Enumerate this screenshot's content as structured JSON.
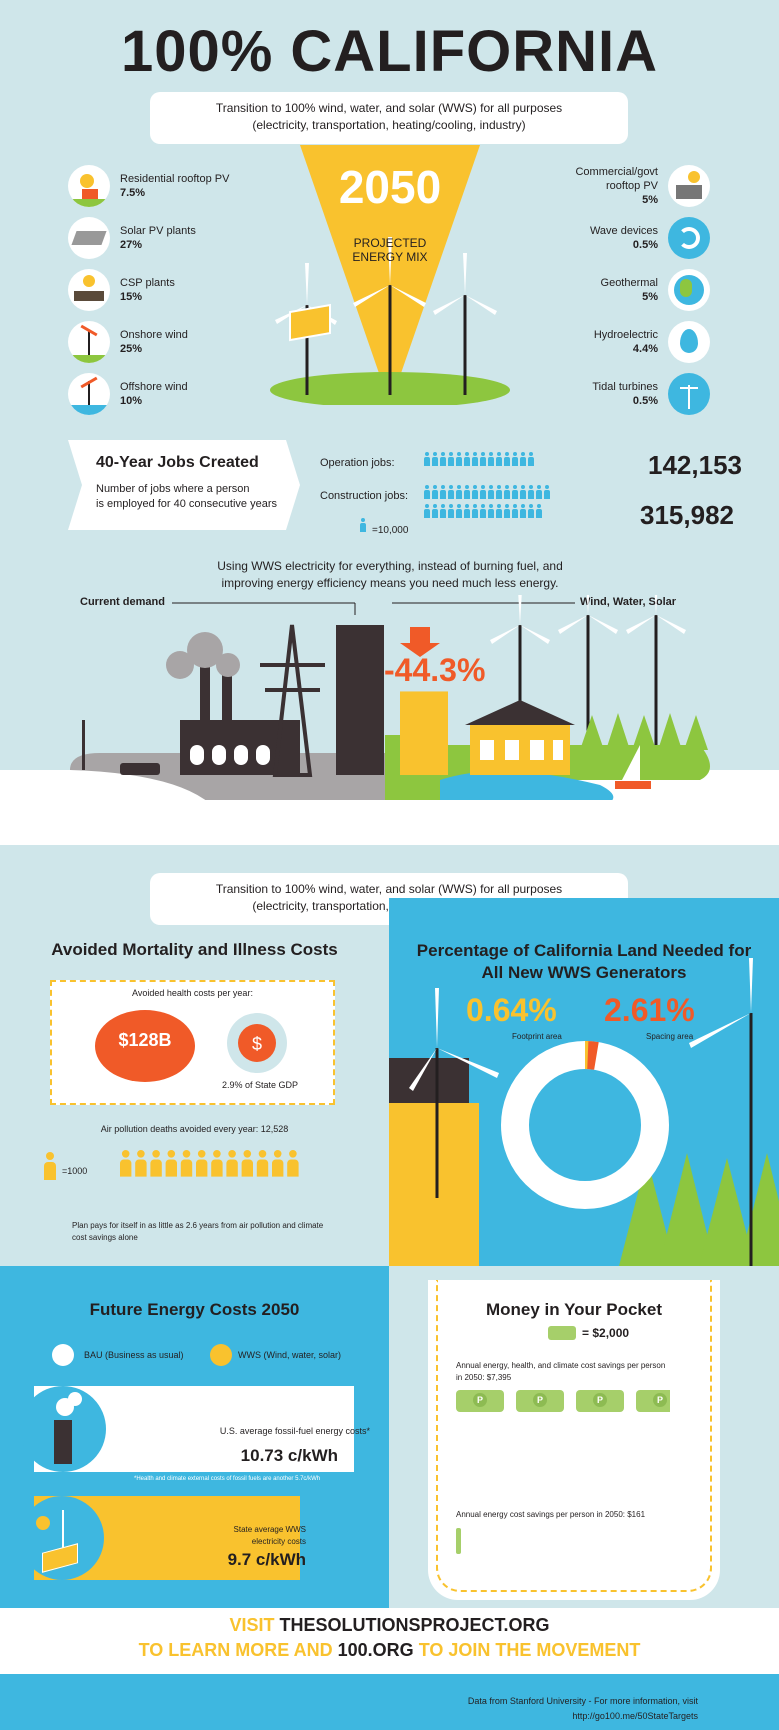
{
  "title": "100% CALIFORNIA",
  "intro": {
    "line1": "Transition to 100% wind, water, and solar (WWS) for all purposes",
    "line2": "(electricity, transportation, heating/cooling, industry)"
  },
  "mix": {
    "year": "2050",
    "caption_line1": "PROJECTED",
    "caption_line2": "ENERGY MIX"
  },
  "sources_left": [
    {
      "name": "Residential rooftop PV",
      "pct": "7.5%",
      "icon": "house-sun-icon"
    },
    {
      "name": "Solar PV plants",
      "pct": "27%",
      "icon": "solar-panel-icon"
    },
    {
      "name": "CSP plants",
      "pct": "15%",
      "icon": "csp-icon"
    },
    {
      "name": "Onshore wind",
      "pct": "25%",
      "icon": "wind-turbine-icon"
    },
    {
      "name": "Offshore wind",
      "pct": "10%",
      "icon": "offshore-wind-icon"
    }
  ],
  "sources_right": [
    {
      "name_line1": "Commercial/govt",
      "name_line2": "rooftop PV",
      "pct": "5%",
      "icon": "factory-sun-icon"
    },
    {
      "name_line1": "Wave devices",
      "name_line2": "",
      "pct": "0.5%",
      "icon": "wave-icon"
    },
    {
      "name_line1": "Geothermal",
      "name_line2": "",
      "pct": "5%",
      "icon": "globe-icon"
    },
    {
      "name_line1": "Hydroelectric",
      "name_line2": "",
      "pct": "4.4%",
      "icon": "water-drop-icon"
    },
    {
      "name_line1": "Tidal turbines",
      "name_line2": "",
      "pct": "0.5%",
      "icon": "tidal-turbine-icon"
    }
  ],
  "jobs": {
    "title": "40-Year Jobs Created",
    "desc_line1": "Number of jobs where a person",
    "desc_line2": "is employed for 40 consecutive years",
    "operation_label": "Operation jobs:",
    "operation_value": "142,153",
    "operation_count": 14.2,
    "construction_label": "Construction jobs:",
    "construction_value": "315,982",
    "construction_count": 31.6,
    "legend": "=10,000"
  },
  "demand": {
    "text_line1": "Using WWS electricity for everything, instead of burning fuel, and",
    "text_line2": "improving energy efficiency means you need much less energy.",
    "current_label": "Current demand",
    "wws_label": "Wind, Water, Solar",
    "reduction": "-44.3%"
  },
  "intro2": {
    "line1": "Transition to 100% wind, water, and solar (WWS) for all purposes",
    "line2": "(electricity, transportation, heating/cooling, industry)"
  },
  "mortality": {
    "title": "Avoided Mortality and Illness Costs",
    "health_label": "Avoided health costs per year:",
    "amount": "$128B",
    "gdp_pct": 2.9,
    "gdp_label": "2.9% of State GDP",
    "deaths_label": "Air pollution deaths avoided every year: 12,528",
    "legend": "=1000",
    "death_icons": 12.5,
    "payback_line1": "Plan pays for itself in as little as 2.6 years from air pollution and climate",
    "payback_line2": "cost savings alone"
  },
  "land": {
    "title_line1": "Percentage of California Land Needed for",
    "title_line2": "All New WWS Generators",
    "footprint_value": "0.64%",
    "footprint_label": "Footprint area",
    "footprint_pct": 0.64,
    "spacing_value": "2.61%",
    "spacing_label": "Spacing area",
    "spacing_pct": 2.61
  },
  "costs": {
    "title": "Future Energy Costs 2050",
    "bau_legend": "BAU (Business as usual)",
    "wws_legend": "WWS (Wind, water, solar)",
    "bau_label": "U.S. average fossil-fuel energy costs*",
    "bau_value": "10.73 c/kWh",
    "bau_num": 10.73,
    "footnote": "*Health and climate external costs of fossil fuels are another 5.7c/kWh",
    "wws_label_line1": "State average WWS",
    "wws_label_line2": "electricity costs",
    "wws_value": "9.7 c/kWh",
    "wws_num": 9.7
  },
  "pocket": {
    "title": "Money in Your Pocket",
    "legend": "= $2,000",
    "annual_label_line1": "Annual energy, health, and climate cost savings per person",
    "annual_label_line2": "in 2050: $7,395",
    "bills": 3.7,
    "energy_label": "Annual energy cost savings per person in 2050: $161"
  },
  "cta": {
    "visit": "VISIT",
    "site": "THESOLUTIONSPROJECT.ORG",
    "learn": "TO LEARN MORE AND",
    "org": "100.ORG",
    "join": "TO JOIN THE MOVEMENT"
  },
  "footer": {
    "line1": "Data from Stanford University - For more information, visit",
    "line2": "http://go100.me/50StateTargets"
  },
  "colors": {
    "yellow": "#f9c22e",
    "orange": "#f05a28",
    "blue": "#3eb7e0",
    "green": "#8dc63f",
    "dark": "#231f20",
    "bg": "#cfe6ea"
  }
}
